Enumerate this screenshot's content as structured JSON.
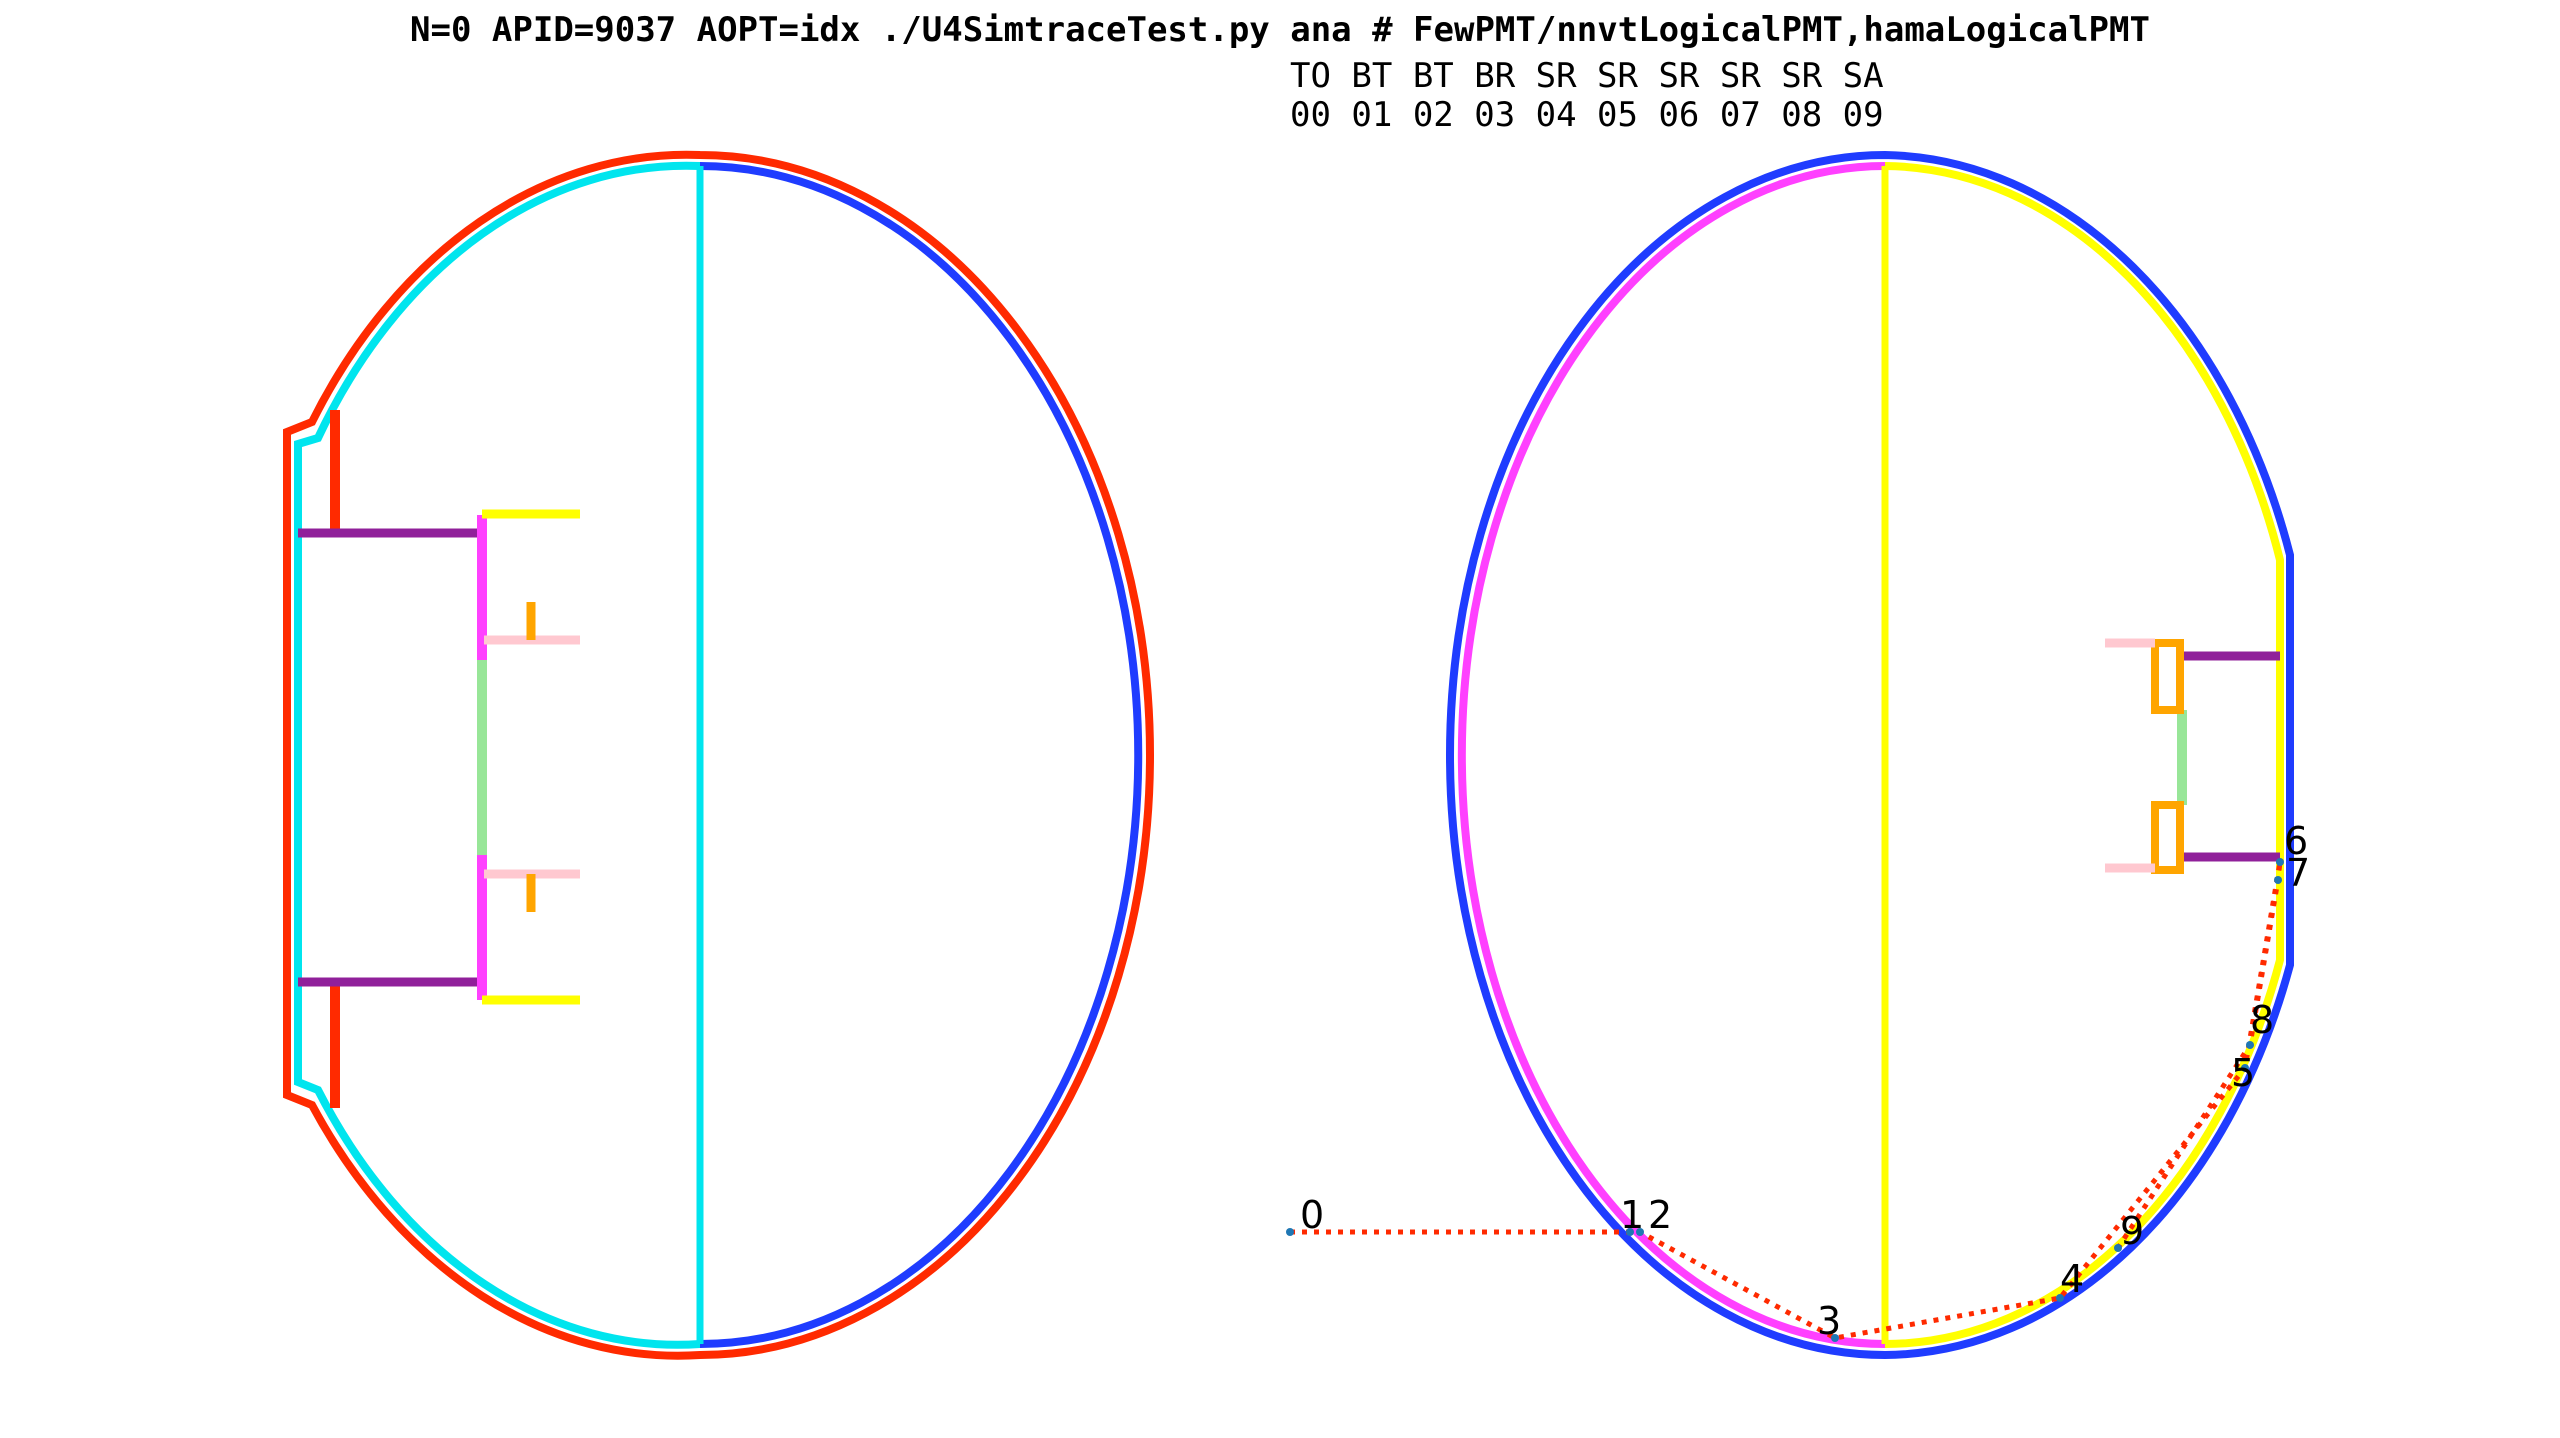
{
  "header": {
    "title": "N=0 APID=9037 AOPT=idx  ./U4SimtraceTest.py ana   # FewPMT/nnvtLogicalPMT,hamaLogicalPMT",
    "history_codes": "TO BT BT BR SR SR SR SR SR SA",
    "history_indices": "00 01 02 03 04 05 06 07 08 09"
  },
  "colors": {
    "red": "#ff2a00",
    "cyan": "#00e5ee",
    "blue": "#1f3cff",
    "magenta": "#ff40ff",
    "yellow": "#ffff00",
    "purple": "#90209a",
    "orange": "#ffa500",
    "pink": "#ffc8d0",
    "green": "#98e698",
    "path": "#ff2a00",
    "point": "#1f77b4"
  },
  "photon_path": {
    "labels": [
      "0",
      "1",
      "2",
      "3",
      "4",
      "5",
      "6",
      "7",
      "8",
      "9"
    ]
  }
}
